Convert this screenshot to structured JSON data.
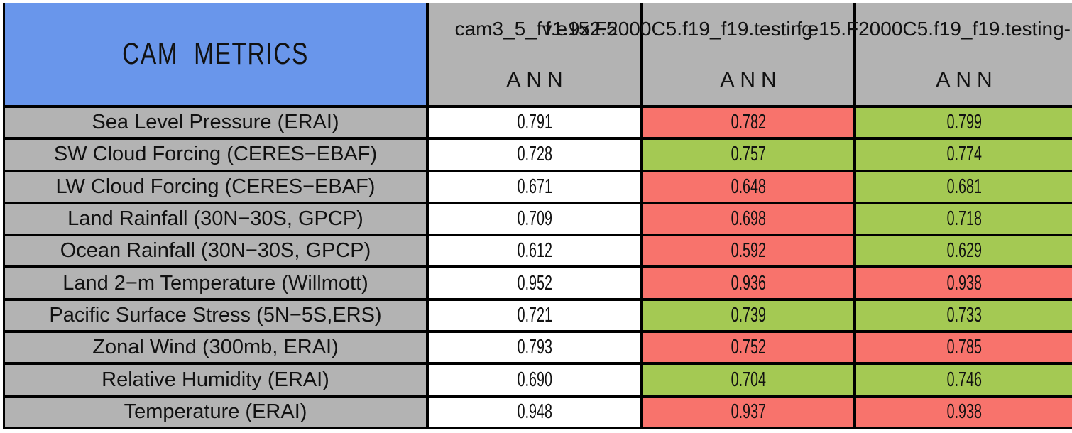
{
  "chart_data": {
    "type": "table",
    "title": "CAM METRICS",
    "columns": [
      {
        "case_name": "cam3_5_fv1.9x2.5",
        "season": "ANN"
      },
      {
        "case_name": "f.e15.F2000C5.f19_f19.testing",
        "season": "ANN"
      },
      {
        "case_name": "f.e15.F2000C5.f19_f19.testing-",
        "season": "ANN"
      }
    ],
    "rows": [
      {
        "label": "Sea Level Pressure (ERAI)",
        "values": [
          {
            "v": "0.791",
            "bg": "white"
          },
          {
            "v": "0.782",
            "bg": "red"
          },
          {
            "v": "0.799",
            "bg": "green"
          }
        ]
      },
      {
        "label": "SW Cloud Forcing (CERES−EBAF)",
        "values": [
          {
            "v": "0.728",
            "bg": "white"
          },
          {
            "v": "0.757",
            "bg": "green"
          },
          {
            "v": "0.774",
            "bg": "green"
          }
        ]
      },
      {
        "label": "LW Cloud Forcing (CERES−EBAF)",
        "values": [
          {
            "v": "0.671",
            "bg": "white"
          },
          {
            "v": "0.648",
            "bg": "red"
          },
          {
            "v": "0.681",
            "bg": "green"
          }
        ]
      },
      {
        "label": "Land Rainfall (30N−30S, GPCP)",
        "values": [
          {
            "v": "0.709",
            "bg": "white"
          },
          {
            "v": "0.698",
            "bg": "red"
          },
          {
            "v": "0.718",
            "bg": "green"
          }
        ]
      },
      {
        "label": "Ocean Rainfall (30N−30S, GPCP)",
        "values": [
          {
            "v": "0.612",
            "bg": "white"
          },
          {
            "v": "0.592",
            "bg": "red"
          },
          {
            "v": "0.629",
            "bg": "green"
          }
        ]
      },
      {
        "label": "Land 2−m Temperature (Willmott)",
        "values": [
          {
            "v": "0.952",
            "bg": "white"
          },
          {
            "v": "0.936",
            "bg": "red"
          },
          {
            "v": "0.938",
            "bg": "red"
          }
        ]
      },
      {
        "label": "Pacific Surface Stress (5N−5S,ERS)",
        "values": [
          {
            "v": "0.721",
            "bg": "white"
          },
          {
            "v": "0.739",
            "bg": "green"
          },
          {
            "v": "0.733",
            "bg": "green"
          }
        ]
      },
      {
        "label": "Zonal Wind (300mb, ERAI)",
        "values": [
          {
            "v": "0.793",
            "bg": "white"
          },
          {
            "v": "0.752",
            "bg": "red"
          },
          {
            "v": "0.785",
            "bg": "red"
          }
        ]
      },
      {
        "label": "Relative Humidity (ERAI)",
        "values": [
          {
            "v": "0.690",
            "bg": "white"
          },
          {
            "v": "0.704",
            "bg": "green"
          },
          {
            "v": "0.746",
            "bg": "green"
          }
        ]
      },
      {
        "label": "Temperature (ERAI)",
        "values": [
          {
            "v": "0.948",
            "bg": "white"
          },
          {
            "v": "0.937",
            "bg": "red"
          },
          {
            "v": "0.938",
            "bg": "red"
          }
        ]
      }
    ],
    "legend_position": "none",
    "grid": "on"
  },
  "colors": {
    "blue": "#6996EB",
    "gray": "#B3B3B3",
    "red": "#F8736C",
    "green": "#A4C953",
    "white": "#FFFFFF",
    "border": "#000000"
  }
}
